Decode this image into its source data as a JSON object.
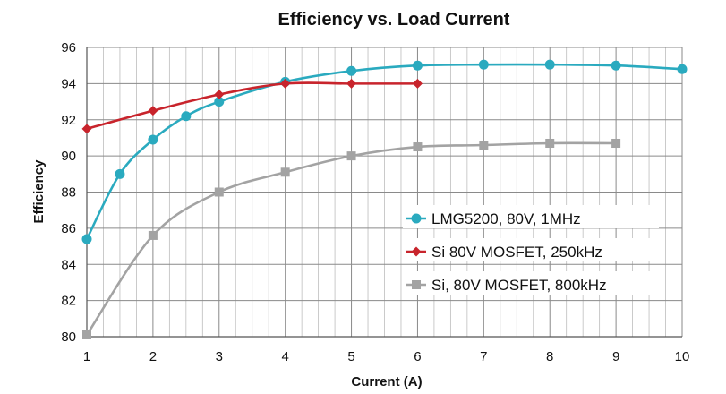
{
  "chart_data": {
    "type": "line",
    "title": "Efficiency vs. Load Current",
    "xlabel": "Current (A)",
    "ylabel": "Efficiency",
    "xlim": [
      1,
      10
    ],
    "ylim": [
      80,
      96
    ],
    "x_ticks": [
      1,
      2,
      3,
      4,
      5,
      6,
      7,
      8,
      9,
      10
    ],
    "y_ticks": [
      80,
      82,
      84,
      86,
      88,
      90,
      92,
      94,
      96
    ],
    "grid": true,
    "legend_position": "lower-right",
    "series": [
      {
        "name": "LMG5200, 80V, 1MHz",
        "color": "#2aaabf",
        "marker": "circle",
        "x": [
          1,
          1.5,
          2,
          2.5,
          3,
          4,
          5,
          6,
          7,
          8,
          9,
          10
        ],
        "y": [
          85.4,
          89.0,
          90.9,
          92.2,
          93.0,
          94.1,
          94.7,
          95.0,
          95.05,
          95.05,
          95.0,
          94.8
        ]
      },
      {
        "name": "Si 80V MOSFET, 250kHz",
        "color": "#c8242c",
        "marker": "diamond",
        "x": [
          1,
          2,
          3,
          4,
          5,
          6
        ],
        "y": [
          91.5,
          92.5,
          93.4,
          94.0,
          94.0,
          94.0
        ]
      },
      {
        "name": "Si, 80V MOSFET, 800kHz",
        "color": "#a3a3a3",
        "marker": "square",
        "x": [
          1,
          2,
          3,
          4,
          5,
          6,
          7,
          8,
          9
        ],
        "y": [
          80.1,
          85.6,
          88.0,
          89.1,
          90.0,
          90.5,
          90.6,
          90.7,
          90.7
        ]
      }
    ]
  }
}
